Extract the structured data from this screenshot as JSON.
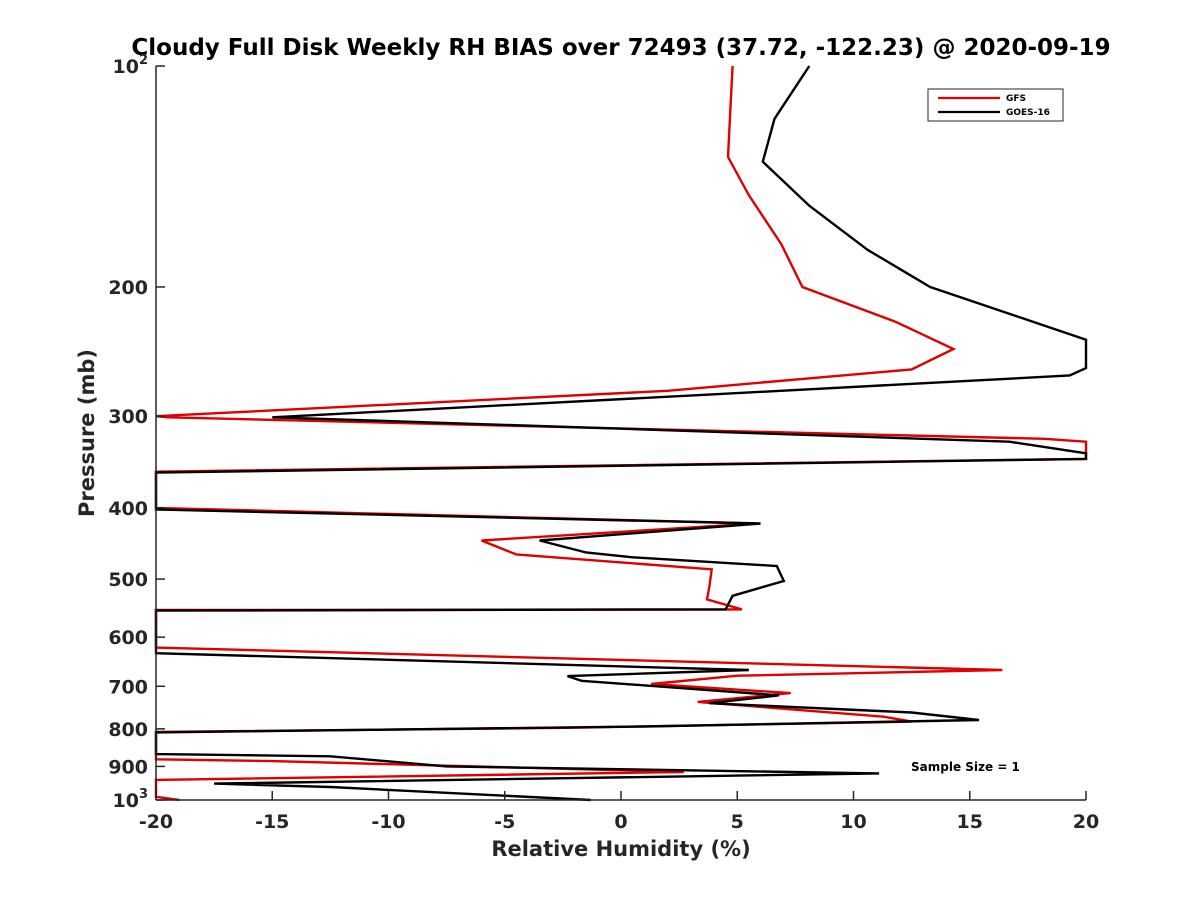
{
  "chart_data": {
    "type": "line",
    "title": "Cloudy Full Disk Weekly RH BIAS over 72493 (37.72, -122.23) @ 2020-09-19",
    "xlabel": "Relative Humidity (%)",
    "ylabel": "Pressure (mb)",
    "xlim": [
      -20,
      20
    ],
    "ylim": [
      100,
      1000
    ],
    "y_scale": "log",
    "y_reversed": true,
    "x_ticks": [
      -20,
      -15,
      -10,
      -5,
      0,
      5,
      10,
      15,
      20
    ],
    "x_tick_labels": [
      "-20",
      "-15",
      "-10",
      "-5",
      "0",
      "5",
      "10",
      "15",
      "20"
    ],
    "y_ticks": [
      100,
      200,
      300,
      400,
      500,
      600,
      700,
      800,
      900,
      1000
    ],
    "y_tick_labels": [
      {
        "base": "10",
        "exp": "2"
      },
      {
        "base": "200",
        "exp": ""
      },
      {
        "base": "300",
        "exp": ""
      },
      {
        "base": "400",
        "exp": ""
      },
      {
        "base": "500",
        "exp": ""
      },
      {
        "base": "600",
        "exp": ""
      },
      {
        "base": "700",
        "exp": ""
      },
      {
        "base": "800",
        "exp": ""
      },
      {
        "base": "900",
        "exp": ""
      },
      {
        "base": "10",
        "exp": "3"
      }
    ],
    "grid": false,
    "legend_position": "top-right",
    "annotation": "Sample Size = 1",
    "series": [
      {
        "name": "GFS",
        "color": "#e00000",
        "points": [
          [
            4.8,
            100
          ],
          [
            4.7,
            115
          ],
          [
            4.6,
            133
          ],
          [
            5.5,
            150
          ],
          [
            6.9,
            175
          ],
          [
            7.8,
            200
          ],
          [
            11.8,
            223
          ],
          [
            14.3,
            243
          ],
          [
            12.5,
            259
          ],
          [
            2.0,
            277
          ],
          [
            -20,
            300
          ],
          [
            -19.5,
            301
          ],
          [
            18.2,
            322
          ],
          [
            20,
            325
          ],
          [
            20,
            343
          ],
          [
            -20,
            357
          ],
          [
            -20,
            400
          ],
          [
            5.8,
            420
          ],
          [
            -6.0,
            443
          ],
          [
            -4.5,
            463
          ],
          [
            3.9,
            485
          ],
          [
            3.8,
            512
          ],
          [
            3.7,
            533
          ],
          [
            5.2,
            550
          ],
          [
            -20,
            551
          ],
          [
            -20,
            620
          ],
          [
            16.4,
            665
          ],
          [
            5.0,
            677
          ],
          [
            1.3,
            695
          ],
          [
            7.3,
            715
          ],
          [
            3.3,
            735
          ],
          [
            11.3,
            770
          ],
          [
            12.5,
            782
          ],
          [
            -2.0,
            797
          ],
          [
            -20,
            808
          ],
          [
            -20,
            880
          ],
          [
            -15.0,
            885
          ],
          [
            2.7,
            916
          ],
          [
            -20,
            939
          ],
          [
            -20,
            990
          ],
          [
            -19.0,
            1000
          ]
        ]
      },
      {
        "name": "GOES-16",
        "color": "#000000",
        "points": [
          [
            8.1,
            100
          ],
          [
            6.6,
            118
          ],
          [
            6.1,
            135
          ],
          [
            8.1,
            155
          ],
          [
            10.6,
            178
          ],
          [
            13.3,
            200
          ],
          [
            20,
            236
          ],
          [
            20,
            258
          ],
          [
            19.3,
            264
          ],
          [
            4.1,
            280
          ],
          [
            -15.0,
            301
          ],
          [
            0,
            312
          ],
          [
            16.7,
            325
          ],
          [
            20,
            337
          ],
          [
            20,
            343
          ],
          [
            -20,
            358
          ],
          [
            -20,
            402
          ],
          [
            6.0,
            420
          ],
          [
            -3.5,
            443
          ],
          [
            -1.5,
            460
          ],
          [
            0.5,
            467
          ],
          [
            6.7,
            480
          ],
          [
            7.0,
            503
          ],
          [
            4.8,
            527
          ],
          [
            4.5,
            550
          ],
          [
            -20,
            552
          ],
          [
            -20,
            631
          ],
          [
            5.5,
            665
          ],
          [
            -2.3,
            678
          ],
          [
            -1.7,
            688
          ],
          [
            6.8,
            720
          ],
          [
            3.8,
            738
          ],
          [
            12.5,
            760
          ],
          [
            15.4,
            778
          ],
          [
            1.0,
            794
          ],
          [
            -20,
            809
          ],
          [
            -20,
            866
          ],
          [
            -12.5,
            872
          ],
          [
            -7.5,
            900
          ],
          [
            11.1,
            920
          ],
          [
            -17.5,
            950
          ],
          [
            -12.5,
            960
          ],
          [
            -1.3,
            1000
          ]
        ]
      }
    ]
  }
}
